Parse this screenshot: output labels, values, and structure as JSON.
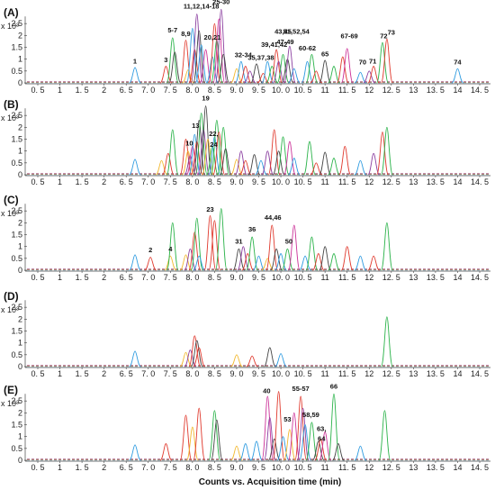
{
  "chart_data": {
    "type": "line",
    "x_axis_title": "Counts vs. Acquisition time (min)",
    "x_tick_labels": [
      "0. 5",
      "1",
      "1. 5",
      "2",
      "6. 5",
      "7. 0",
      "7. 5",
      "8. 0",
      "8. 5",
      "9. 0",
      "9. 5",
      "10. 0",
      "10. 5",
      "11",
      "11. 5",
      "12",
      "12. 5",
      "13",
      "13. 5",
      "14",
      "14. 5"
    ],
    "x_tick_values": [
      0.5,
      1,
      1.5,
      2,
      6.5,
      7.0,
      7.5,
      8.0,
      8.5,
      9.0,
      9.5,
      10.0,
      10.5,
      11,
      11.5,
      12,
      12.5,
      13,
      13.5,
      14,
      14.5
    ],
    "y_tick_labels": [
      "0",
      "0.5",
      "1",
      "1.5",
      "2",
      "2.5"
    ],
    "y_tick_values": [
      0,
      0.5,
      1,
      1.5,
      2,
      2.5
    ],
    "y_exponent": "x 10³",
    "ylim": [
      0,
      3
    ],
    "palette": [
      "#2e9be0",
      "#e03a2e",
      "#2bb34a",
      "#8b3fa0",
      "#f2b82e",
      "#444444",
      "#cc3399"
    ],
    "panels": [
      {
        "label": "(A)",
        "peaks": [
          [
            6.7,
            0.65,
            0
          ],
          [
            7.4,
            0.7,
            1
          ],
          [
            7.55,
            1.9,
            2
          ],
          [
            7.6,
            1.3,
            5
          ],
          [
            7.85,
            1.8,
            1
          ],
          [
            7.9,
            0.55,
            4
          ],
          [
            8.0,
            2.3,
            0
          ],
          [
            8.05,
            1.4,
            1
          ],
          [
            8.1,
            2.9,
            3
          ],
          [
            8.15,
            2.2,
            5
          ],
          [
            8.2,
            1.6,
            0
          ],
          [
            8.3,
            1.4,
            6
          ],
          [
            8.45,
            1.1,
            0
          ],
          [
            8.5,
            2.5,
            1
          ],
          [
            8.55,
            1.8,
            2
          ],
          [
            8.6,
            2.7,
            6
          ],
          [
            8.65,
            3.1,
            3
          ],
          [
            8.7,
            1.2,
            5
          ],
          [
            9.0,
            0.6,
            4
          ],
          [
            9.1,
            0.9,
            0
          ],
          [
            9.2,
            0.7,
            1
          ],
          [
            9.3,
            0.5,
            3
          ],
          [
            9.45,
            0.8,
            5
          ],
          [
            9.6,
            0.4,
            1
          ],
          [
            9.7,
            0.9,
            0
          ],
          [
            9.8,
            0.7,
            2
          ],
          [
            9.9,
            1.4,
            1
          ],
          [
            9.95,
            0.9,
            3
          ],
          [
            10.05,
            1.2,
            2
          ],
          [
            10.15,
            1.0,
            5
          ],
          [
            10.2,
            1.55,
            3
          ],
          [
            10.3,
            0.6,
            0
          ],
          [
            10.6,
            0.9,
            0
          ],
          [
            10.7,
            1.2,
            2
          ],
          [
            10.8,
            0.5,
            1
          ],
          [
            11.0,
            0.95,
            5
          ],
          [
            11.2,
            0.7,
            2
          ],
          [
            11.4,
            1.1,
            1
          ],
          [
            11.5,
            1.45,
            6
          ],
          [
            11.8,
            0.45,
            0
          ],
          [
            12.0,
            0.5,
            3
          ],
          [
            12.1,
            0.7,
            1
          ],
          [
            12.3,
            1.7,
            2
          ],
          [
            12.4,
            1.85,
            1
          ],
          [
            14.0,
            0.6,
            0
          ]
        ],
        "annotations": [
          {
            "text": "1",
            "x": 6.7,
            "y": 0.75
          },
          {
            "text": "3",
            "x": 7.4,
            "y": 0.8
          },
          {
            "text": "5-7",
            "x": 7.55,
            "y": 2.05
          },
          {
            "text": "8,9",
            "x": 7.85,
            "y": 1.9
          },
          {
            "text": "11,12,14-18",
            "x": 8.2,
            "y": 3.05
          },
          {
            "text": "20,21",
            "x": 8.45,
            "y": 1.75
          },
          {
            "text": "25-30",
            "x": 8.65,
            "y": 3.25
          },
          {
            "text": "32-34",
            "x": 9.15,
            "y": 1.0
          },
          {
            "text": "35,37,38",
            "x": 9.55,
            "y": 0.9
          },
          {
            "text": "39,41,42",
            "x": 9.85,
            "y": 1.45
          },
          {
            "text": "43,45",
            "x": 10.05,
            "y": 2.0
          },
          {
            "text": "47-49",
            "x": 10.1,
            "y": 1.55
          },
          {
            "text": "51,52,54",
            "x": 10.35,
            "y": 2.0
          },
          {
            "text": "60-62",
            "x": 10.6,
            "y": 1.3
          },
          {
            "text": "65",
            "x": 11.0,
            "y": 1.05
          },
          {
            "text": "67-69",
            "x": 11.55,
            "y": 1.8
          },
          {
            "text": "70",
            "x": 11.85,
            "y": 0.7
          },
          {
            "text": "71",
            "x": 12.08,
            "y": 0.75
          },
          {
            "text": "72",
            "x": 12.33,
            "y": 1.8
          },
          {
            "text": "73",
            "x": 12.5,
            "y": 1.95
          },
          {
            "text": "74",
            "x": 14.0,
            "y": 0.7
          }
        ]
      },
      {
        "label": "(B)",
        "peaks": [
          [
            6.7,
            0.65,
            0
          ],
          [
            7.3,
            0.6,
            4
          ],
          [
            7.45,
            0.9,
            1
          ],
          [
            7.55,
            1.9,
            2
          ],
          [
            7.85,
            1.5,
            1
          ],
          [
            7.9,
            1.0,
            4
          ],
          [
            7.95,
            0.8,
            3
          ],
          [
            8.0,
            1.2,
            6
          ],
          [
            8.05,
            1.7,
            0
          ],
          [
            8.1,
            1.4,
            1
          ],
          [
            8.15,
            2.3,
            5
          ],
          [
            8.2,
            2.6,
            2
          ],
          [
            8.25,
            1.9,
            3
          ],
          [
            8.3,
            2.9,
            5
          ],
          [
            8.35,
            1.5,
            4
          ],
          [
            8.45,
            1.2,
            2
          ],
          [
            8.5,
            1.6,
            0
          ],
          [
            8.55,
            2.3,
            2
          ],
          [
            8.6,
            1.8,
            1
          ],
          [
            8.7,
            2.0,
            2
          ],
          [
            8.75,
            1.1,
            5
          ],
          [
            9.0,
            0.65,
            4
          ],
          [
            9.1,
            1.0,
            3
          ],
          [
            9.2,
            0.6,
            1
          ],
          [
            9.4,
            0.85,
            5
          ],
          [
            9.55,
            0.6,
            0
          ],
          [
            9.7,
            1.0,
            3
          ],
          [
            9.85,
            1.9,
            1
          ],
          [
            9.95,
            1.0,
            5
          ],
          [
            10.05,
            1.6,
            2
          ],
          [
            10.2,
            1.4,
            6
          ],
          [
            10.3,
            0.7,
            0
          ],
          [
            10.65,
            1.4,
            2
          ],
          [
            10.8,
            0.5,
            1
          ],
          [
            11.0,
            0.95,
            5
          ],
          [
            11.2,
            0.7,
            2
          ],
          [
            11.45,
            1.2,
            1
          ],
          [
            11.8,
            0.6,
            0
          ],
          [
            12.1,
            0.9,
            3
          ],
          [
            12.3,
            1.8,
            1
          ],
          [
            12.4,
            2.0,
            2
          ]
        ],
        "annotations": [
          {
            "text": "10",
            "x": 7.93,
            "y": 1.15
          },
          {
            "text": "13",
            "x": 8.07,
            "y": 1.9
          },
          {
            "text": "19",
            "x": 8.3,
            "y": 3.05
          },
          {
            "text": "22,",
            "x": 8.48,
            "y": 1.55
          },
          {
            "text": "24",
            "x": 8.48,
            "y": 1.1
          }
        ]
      },
      {
        "label": "(C)",
        "peaks": [
          [
            6.7,
            0.65,
            0
          ],
          [
            7.05,
            0.55,
            1
          ],
          [
            7.5,
            0.6,
            4
          ],
          [
            7.55,
            2.0,
            2
          ],
          [
            7.85,
            0.65,
            4
          ],
          [
            7.95,
            0.9,
            3
          ],
          [
            8.05,
            1.6,
            1
          ],
          [
            8.1,
            2.2,
            2
          ],
          [
            8.15,
            0.6,
            0
          ],
          [
            8.4,
            2.3,
            1
          ],
          [
            8.5,
            2.1,
            1
          ],
          [
            8.65,
            2.6,
            2
          ],
          [
            9.05,
            0.9,
            5
          ],
          [
            9.15,
            1.0,
            3
          ],
          [
            9.25,
            0.7,
            1
          ],
          [
            9.35,
            1.4,
            2
          ],
          [
            9.5,
            0.6,
            0
          ],
          [
            9.7,
            0.5,
            4
          ],
          [
            9.8,
            1.9,
            1
          ],
          [
            9.9,
            0.9,
            5
          ],
          [
            10.0,
            0.7,
            0
          ],
          [
            10.15,
            0.9,
            2
          ],
          [
            10.3,
            1.9,
            6
          ],
          [
            10.55,
            0.6,
            0
          ],
          [
            10.7,
            1.4,
            2
          ],
          [
            10.85,
            0.7,
            1
          ],
          [
            11.0,
            1.0,
            5
          ],
          [
            11.2,
            0.7,
            2
          ],
          [
            11.5,
            1.0,
            1
          ],
          [
            11.8,
            0.6,
            0
          ],
          [
            12.1,
            0.6,
            1
          ],
          [
            12.4,
            2.0,
            2
          ]
        ],
        "annotations": [
          {
            "text": "2",
            "x": 7.05,
            "y": 0.68
          },
          {
            "text": "4",
            "x": 7.5,
            "y": 0.73
          },
          {
            "text": "23",
            "x": 8.4,
            "y": 2.4
          },
          {
            "text": "31",
            "x": 9.05,
            "y": 1.05
          },
          {
            "text": "36",
            "x": 9.35,
            "y": 1.55
          },
          {
            "text": "44,46",
            "x": 9.82,
            "y": 2.05
          },
          {
            "text": "50",
            "x": 10.18,
            "y": 1.05
          }
        ]
      },
      {
        "label": "(D)",
        "peaks": [
          [
            6.7,
            0.65,
            0
          ],
          [
            7.85,
            0.6,
            4
          ],
          [
            7.95,
            0.7,
            3
          ],
          [
            8.05,
            1.3,
            1
          ],
          [
            8.1,
            1.1,
            5
          ],
          [
            8.15,
            0.8,
            1
          ],
          [
            9.0,
            0.5,
            4
          ],
          [
            9.35,
            0.45,
            1
          ],
          [
            9.75,
            0.8,
            5
          ],
          [
            10.0,
            0.55,
            0
          ],
          [
            12.4,
            2.1,
            2
          ]
        ],
        "annotations": []
      },
      {
        "label": "(E)",
        "peaks": [
          [
            6.7,
            0.65,
            0
          ],
          [
            7.4,
            0.7,
            1
          ],
          [
            7.85,
            1.9,
            1
          ],
          [
            8.0,
            1.4,
            4
          ],
          [
            8.15,
            2.2,
            1
          ],
          [
            8.5,
            2.1,
            2
          ],
          [
            8.55,
            1.7,
            5
          ],
          [
            9.0,
            0.6,
            4
          ],
          [
            9.2,
            0.7,
            0
          ],
          [
            9.45,
            0.8,
            0
          ],
          [
            9.7,
            2.7,
            6
          ],
          [
            9.75,
            1.8,
            3
          ],
          [
            9.85,
            0.9,
            5
          ],
          [
            9.95,
            2.9,
            1
          ],
          [
            10.05,
            1.0,
            0
          ],
          [
            10.2,
            1.3,
            4
          ],
          [
            10.3,
            2.0,
            6
          ],
          [
            10.45,
            2.7,
            1
          ],
          [
            10.5,
            2.2,
            3
          ],
          [
            10.55,
            1.5,
            0
          ],
          [
            10.7,
            1.6,
            2
          ],
          [
            10.85,
            0.8,
            5
          ],
          [
            10.9,
            0.9,
            1
          ],
          [
            11.0,
            1.2,
            6
          ],
          [
            11.2,
            2.8,
            2
          ],
          [
            11.3,
            0.7,
            5
          ],
          [
            11.8,
            0.6,
            0
          ],
          [
            12.35,
            2.1,
            2
          ]
        ],
        "annotations": [
          {
            "text": "40",
            "x": 9.68,
            "y": 2.75
          },
          {
            "text": "53",
            "x": 10.15,
            "y": 1.55
          },
          {
            "text": "55-57",
            "x": 10.45,
            "y": 2.85
          },
          {
            "text": "58,59",
            "x": 10.68,
            "y": 1.75
          },
          {
            "text": "66",
            "x": 11.2,
            "y": 2.95
          },
          {
            "text": "63,",
            "x": 10.92,
            "y": 1.15
          },
          {
            "text": "64",
            "x": 10.92,
            "y": 0.75
          }
        ]
      }
    ]
  }
}
